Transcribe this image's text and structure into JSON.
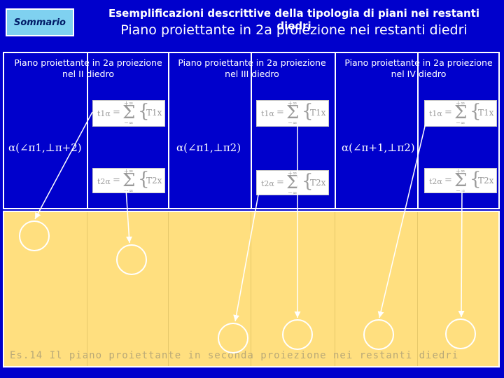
{
  "header": {
    "summary_button": "Sommario",
    "subtitle": "Esemplificazioni descrittive della tipologia di piani nei restanti diedri",
    "title": "Piano proiettante in 2a proiezione nei restanti diedri"
  },
  "columns": [
    {
      "heading_line1": "Piano proiettante in 2a proiezione",
      "heading_line2": "nel II diedro",
      "alpha": "α(∠π1,⊥π+2)"
    },
    {
      "heading_line1": "Piano proiettante in 2a proiezione",
      "heading_line2": "nel III diedro",
      "alpha": "α(∠π1,⊥π2)"
    },
    {
      "heading_line1": "Piano proiettante in 2a proiezione",
      "heading_line2": "nel IV diedro",
      "alpha": "α(∠π+1,⊥π2)"
    }
  ],
  "formulas": {
    "lhs_t1": "t1α",
    "lhs_t2": "t2α",
    "equals": "=",
    "sigma": "Σ",
    "upper": "+∞",
    "lower": "−∞",
    "brace": "{",
    "rhs_t1": "T1x",
    "rhs_t2": "T2x"
  },
  "caption": "Es.14   Il piano proiettante in seconda proiezione nei restanti diedri",
  "colors": {
    "background": "#0000cc",
    "panel": "#ffdf7f",
    "summary_button": "#7fd1f0",
    "lines": "#ffffff"
  }
}
